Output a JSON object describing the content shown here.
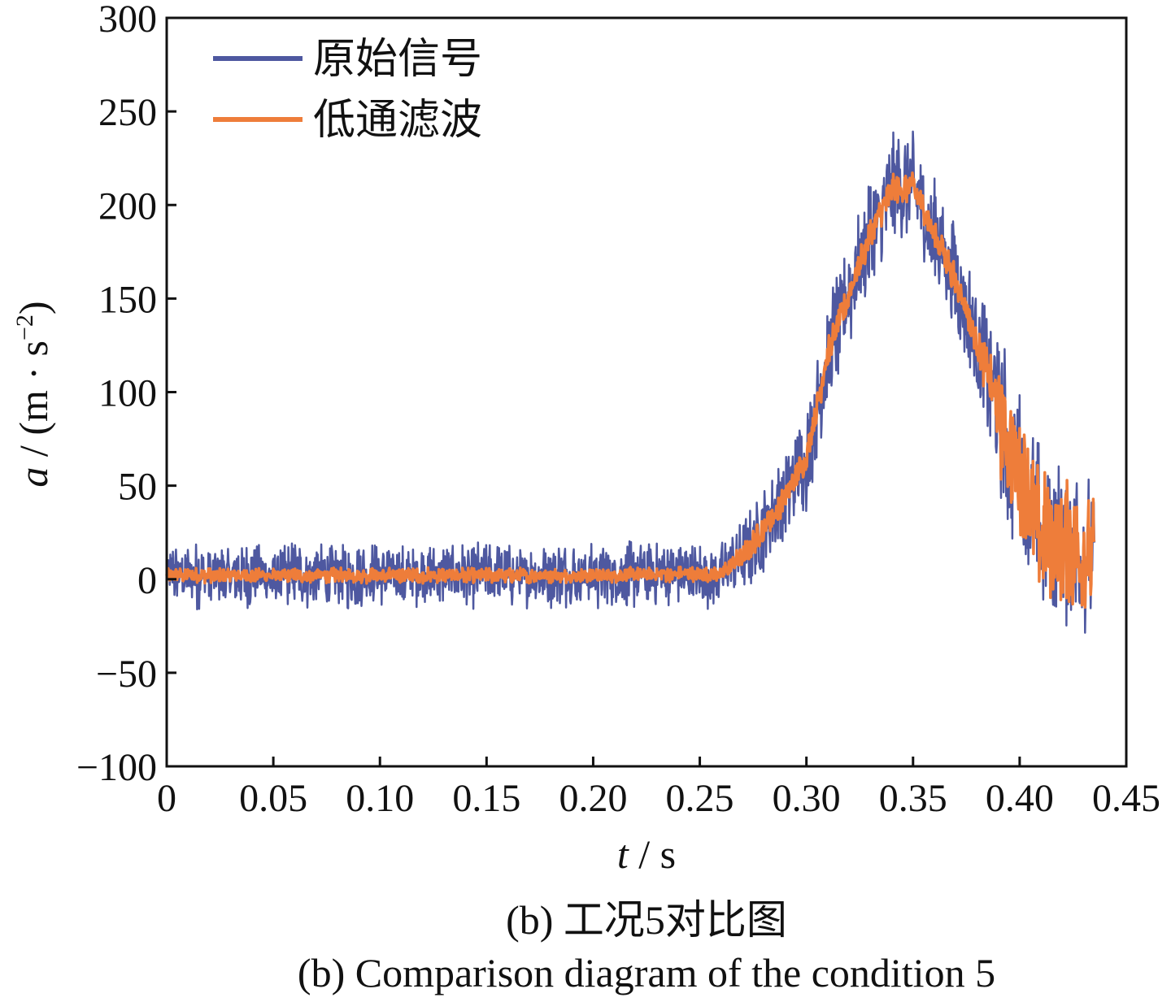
{
  "chart_data": {
    "type": "line",
    "title": "",
    "xlabel_var": "t",
    "xlabel_unit": " / s",
    "ylabel_var": "a",
    "ylabel_unit": " / (m · s",
    "ylabel_exp": "−2",
    "ylabel_close": ")",
    "xlim": [
      0,
      0.45
    ],
    "ylim": [
      -100,
      300
    ],
    "xticks": [
      0,
      0.05,
      0.1,
      0.15,
      0.2,
      0.25,
      0.3,
      0.35,
      0.4,
      0.45
    ],
    "xtick_labels": [
      "0",
      "0.05",
      "0.10",
      "0.15",
      "0.20",
      "0.25",
      "0.30",
      "0.35",
      "0.40",
      "0.45"
    ],
    "yticks": [
      -100,
      -50,
      0,
      50,
      100,
      150,
      200,
      250,
      300
    ],
    "ytick_labels": [
      "−100",
      "−50",
      "0",
      "50",
      "100",
      "150",
      "200",
      "250",
      "300"
    ],
    "legend_position": "top-left",
    "grid": false,
    "series": [
      {
        "name": "原始信号",
        "color": "#4e58a0",
        "trend_t": [
          0,
          0.1,
          0.2,
          0.26,
          0.27,
          0.285,
          0.3,
          0.31,
          0.33,
          0.34,
          0.35,
          0.37,
          0.385,
          0.395,
          0.41,
          0.435
        ],
        "trend_a": [
          2,
          2,
          2,
          3,
          12,
          35,
          65,
          120,
          185,
          208,
          210,
          160,
          110,
          70,
          25,
          10
        ],
        "noise_t": [
          0,
          0.26,
          0.27,
          0.31,
          0.38,
          0.39,
          0.435
        ],
        "noise_amp": [
          18,
          18,
          22,
          30,
          30,
          45,
          45
        ]
      },
      {
        "name": "低通滤波",
        "color": "#ee7d3a",
        "trend_t": [
          0,
          0.1,
          0.2,
          0.26,
          0.27,
          0.285,
          0.3,
          0.31,
          0.33,
          0.34,
          0.35,
          0.37,
          0.385,
          0.395,
          0.41,
          0.435
        ],
        "trend_a": [
          2,
          2,
          2,
          3,
          12,
          35,
          65,
          120,
          185,
          208,
          210,
          160,
          110,
          70,
          25,
          10
        ],
        "noise_t": [
          0,
          0.26,
          0.27,
          0.31,
          0.38,
          0.39,
          0.435
        ],
        "noise_amp": [
          7,
          7,
          12,
          15,
          15,
          40,
          40
        ]
      }
    ]
  },
  "caption_cn": "(b)  工况5对比图",
  "caption_en": "(b)  Comparison diagram of the condition 5"
}
